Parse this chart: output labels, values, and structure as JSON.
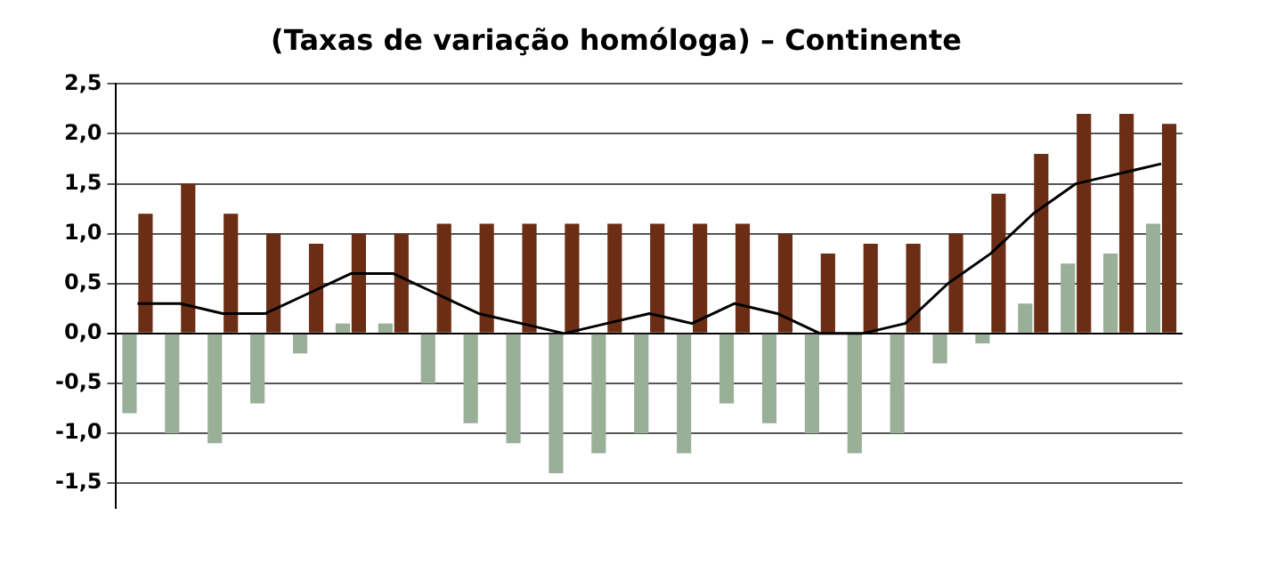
{
  "chart_data": {
    "type": "bar",
    "title": "(Taxas de variação homóloga) – Continente",
    "categories": [
      null,
      null,
      null,
      null,
      null,
      null,
      null,
      null,
      null,
      null,
      null,
      null,
      null,
      null,
      null,
      null,
      null,
      null,
      null,
      null,
      null,
      null,
      null,
      null,
      null
    ],
    "series": [
      {
        "color": "#9aaf98",
        "values": [
          -0.8,
          -1.0,
          -1.1,
          -0.7,
          -0.2,
          0.1,
          0.1,
          -0.5,
          -0.9,
          -1.1,
          -1.4,
          -1.2,
          -1.0,
          -1.2,
          -0.7,
          -0.9,
          -1.0,
          -1.2,
          -1.0,
          -0.3,
          -0.1,
          0.3,
          0.7,
          0.8,
          1.1
        ]
      },
      {
        "color": "#6b2e14",
        "values": [
          1.2,
          1.5,
          1.2,
          1.0,
          0.9,
          1.0,
          1.0,
          1.1,
          1.1,
          1.1,
          1.1,
          1.1,
          1.1,
          1.1,
          1.1,
          1.0,
          0.8,
          0.9,
          0.9,
          1.0,
          1.4,
          1.8,
          2.2,
          2.2,
          2.1
        ]
      },
      {
        "type": "line",
        "color": "#000000",
        "values": [
          0.3,
          0.3,
          0.2,
          0.2,
          0.4,
          0.6,
          0.6,
          0.4,
          0.2,
          0.1,
          0.0,
          0.1,
          0.2,
          0.1,
          0.3,
          0.2,
          0.0,
          0.0,
          0.1,
          0.5,
          0.8,
          1.2,
          1.5,
          1.6,
          1.7
        ]
      }
    ],
    "ylim": [
      -1.75,
      2.5
    ],
    "yticks": [
      {
        "value": -1.5,
        "label": "-1,5"
      },
      {
        "value": -1.0,
        "label": "-1,0"
      },
      {
        "value": -0.5,
        "label": "-0,5"
      },
      {
        "value": 0,
        "label": "0,0"
      },
      {
        "value": 0.5,
        "label": "0,5"
      },
      {
        "value": 1.0,
        "label": "1,0"
      },
      {
        "value": 1.5,
        "label": "1,5"
      },
      {
        "value": 2.0,
        "label": "2,0"
      },
      {
        "value": 2.5,
        "label": "2,5"
      }
    ],
    "grid": "y",
    "marker": "none",
    "legend": false
  }
}
